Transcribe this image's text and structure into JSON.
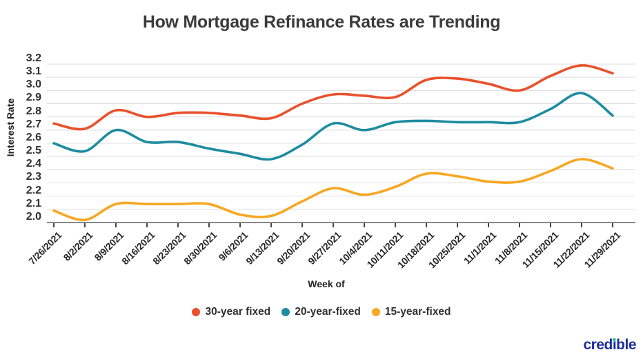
{
  "title": "How Mortgage Refinance Rates are Trending",
  "y_axis": {
    "label": "Interest Rate",
    "ticks": [
      "3.2",
      "3.1",
      "3.0",
      "2.9",
      "2.8",
      "2.7",
      "2.6",
      "2.5",
      "2.4",
      "2.3",
      "2.2",
      "2.1",
      "2.0"
    ]
  },
  "x_axis": {
    "label": "Week of"
  },
  "legend": [
    {
      "label": "30-year fixed",
      "color": "#E8512C"
    },
    {
      "label": "20-year-fixed",
      "color": "#1E8CA0"
    },
    {
      "label": "15-year-fixed",
      "color": "#F7A723"
    }
  ],
  "branding": {
    "text": "credible",
    "color": "#1E2D9E",
    "dot_color": "#25C685"
  },
  "colors": {
    "grid": "#dcdcdc",
    "baseline": "#5f5f5f",
    "tick": "#444444"
  },
  "chart_data": {
    "type": "line",
    "title": "How Mortgage Refinance Rates are Trending",
    "xlabel": "Week of",
    "ylabel": "Interest Rate",
    "ylim": [
      2.0,
      3.2
    ],
    "grid": true,
    "legend_position": "bottom",
    "x": [
      "7/26/2021",
      "8/2/2021",
      "8/9/2021",
      "8/16/2021",
      "8/23/2021",
      "8/30/2021",
      "9/6/2021",
      "9/13/2021",
      "9/20/2021",
      "9/27/2021",
      "10/4/2021",
      "10/11/2021",
      "10/18/2021",
      "10/25/2021",
      "11/1/2021",
      "11/8/2021",
      "11/15/2021",
      "11/22/2021",
      "11/29/2021"
    ],
    "series": [
      {
        "name": "30-year fixed",
        "color": "#E8512C",
        "values": [
          2.75,
          2.71,
          2.85,
          2.8,
          2.83,
          2.83,
          2.81,
          2.79,
          2.9,
          2.97,
          2.96,
          2.95,
          3.08,
          3.09,
          3.05,
          3.0,
          3.11,
          3.19,
          3.13
        ]
      },
      {
        "name": "20-year-fixed",
        "color": "#1E8CA0",
        "values": [
          2.6,
          2.54,
          2.7,
          2.61,
          2.61,
          2.56,
          2.52,
          2.48,
          2.59,
          2.75,
          2.7,
          2.76,
          2.77,
          2.76,
          2.76,
          2.76,
          2.86,
          2.98,
          2.81
        ]
      },
      {
        "name": "15-year-fixed",
        "color": "#F7A723",
        "values": [
          2.09,
          2.02,
          2.14,
          2.14,
          2.14,
          2.14,
          2.06,
          2.05,
          2.16,
          2.26,
          2.21,
          2.27,
          2.37,
          2.35,
          2.31,
          2.31,
          2.39,
          2.48,
          2.41
        ]
      }
    ]
  }
}
